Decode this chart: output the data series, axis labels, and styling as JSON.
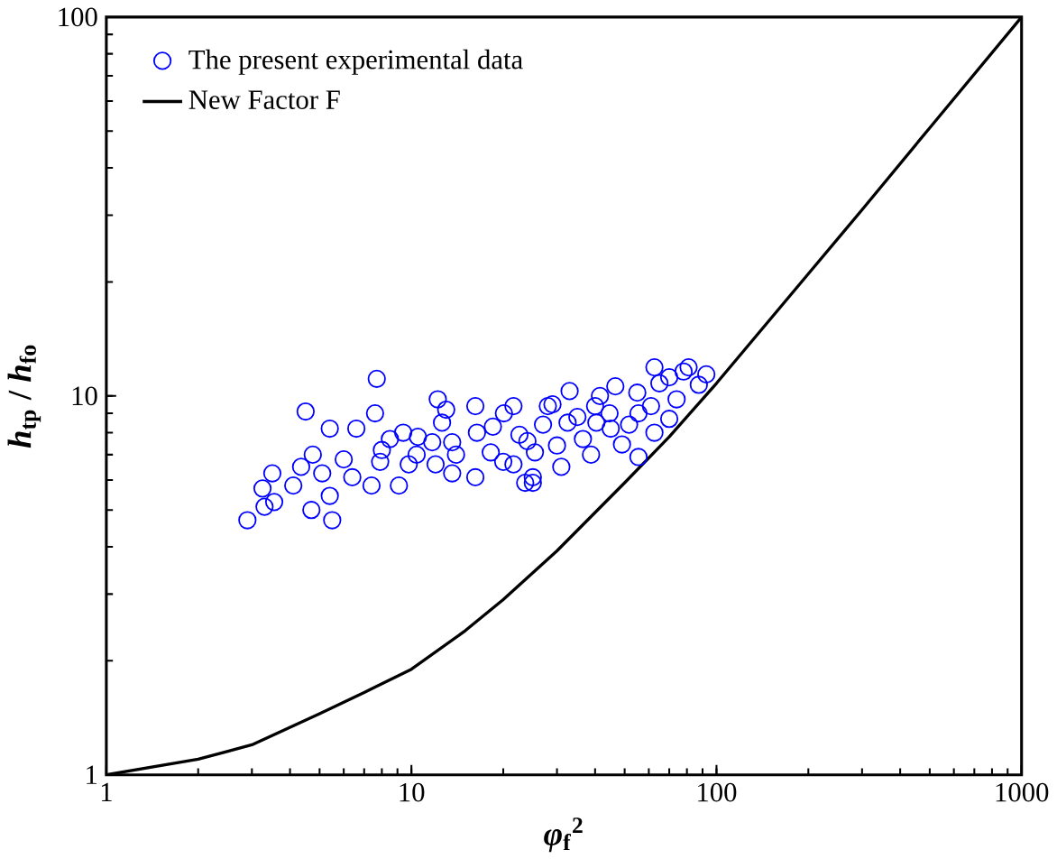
{
  "chart_data": {
    "type": "scatter",
    "xlabel": "*φ*$_{f}$$^{2}$",
    "ylabel": "*h*$_{tp}$ / *h*$_{fo}$",
    "log": "xy",
    "xlim": [
      1,
      1000
    ],
    "ylim": [
      1,
      100
    ],
    "xticks": [
      1,
      10,
      100,
      1000
    ],
    "yticks": [
      1,
      10,
      100
    ],
    "legend": "top left",
    "series": [
      {
        "name": "The present experimental data",
        "marker": "circle",
        "color": "#0000ff",
        "x": [
          2.9,
          5.5,
          4.7,
          3.3,
          3.55,
          3.25,
          3.5,
          4.1,
          4.35,
          4.75,
          5.4,
          4.5,
          7.7,
          7.6,
          6.6,
          5.1,
          5.4,
          6.4,
          7.4,
          7.9,
          8.5,
          9.4,
          9.8,
          9.1,
          10.4,
          12.2,
          13.0,
          12.6,
          11.7,
          13.6,
          13.6,
          16.2,
          16.4,
          16.2,
          18.2,
          20.1,
          21.6,
          22.6,
          21.6,
          25,
          23.6,
          27,
          28,
          25.4,
          29,
          33,
          32.5,
          36.5,
          41.5,
          46.6,
          44.6,
          38.8,
          31,
          25,
          55.5,
          55.5,
          62.6,
          61,
          70,
          74,
          78,
          81,
          92.6,
          87.5,
          70,
          49,
          62.6,
          40.4,
          51.7,
          8,
          6,
          10.5,
          14,
          18.5,
          12,
          24,
          35,
          45,
          20,
          30,
          40,
          55,
          65
        ],
        "values": [
          4.7,
          4.7,
          5.0,
          5.1,
          5.25,
          5.7,
          6.25,
          5.8,
          6.5,
          7.0,
          8.2,
          9.1,
          11.1,
          9.0,
          8.2,
          6.25,
          5.45,
          6.1,
          5.8,
          6.7,
          7.7,
          8.0,
          6.6,
          5.8,
          7.0,
          9.8,
          9.2,
          8.5,
          7.55,
          7.55,
          6.25,
          9.4,
          8.0,
          6.1,
          7.1,
          9.0,
          9.4,
          7.9,
          6.6,
          6.1,
          5.9,
          8.4,
          9.4,
          7.1,
          9.5,
          10.3,
          8.5,
          7.7,
          10.0,
          10.6,
          9.0,
          7.0,
          6.5,
          5.9,
          6.9,
          9.0,
          11.9,
          9.4,
          8.7,
          9.8,
          11.6,
          11.9,
          11.4,
          10.7,
          11.2,
          7.45,
          8.0,
          8.5,
          8.4,
          7.2,
          6.8,
          7.8,
          7.0,
          8.3,
          6.6,
          7.6,
          8.8,
          8.2,
          6.7,
          7.4,
          9.4,
          10.2,
          10.8
        ]
      },
      {
        "name": "New Factor F",
        "type": "line",
        "marker": "none",
        "line_style": "solid",
        "color": "#000000",
        "x": [
          1,
          2,
          3,
          5,
          7,
          10,
          15,
          20,
          30,
          50,
          70,
          100,
          200,
          300,
          500,
          1000
        ],
        "values": [
          1.0,
          1.1,
          1.2,
          1.45,
          1.65,
          1.9,
          2.4,
          2.9,
          3.9,
          5.9,
          7.8,
          10.8,
          21,
          31,
          51,
          100
        ]
      }
    ]
  }
}
